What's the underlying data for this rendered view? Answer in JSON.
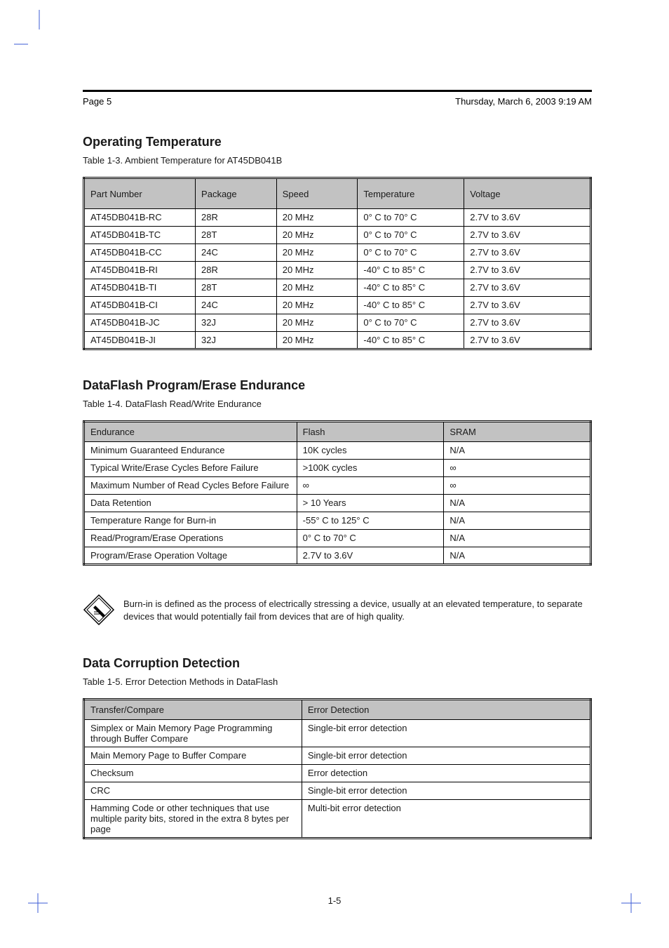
{
  "header": {
    "page_label": "Page 5",
    "timestamp": "Thursday, March 6, 2003  9:19 AM"
  },
  "section_ambient": {
    "title": "Operating Temperature",
    "subtitle": "Table 1-3. Ambient Temperature for AT45DB041B",
    "columns": [
      "Part Number",
      "Package",
      "Speed",
      "Temperature",
      "Voltage"
    ],
    "rows": [
      [
        "AT45DB041B-RC",
        "28R",
        "20 MHz",
        "0° C to 70° C",
        "2.7V to 3.6V"
      ],
      [
        "AT45DB041B-TC",
        "28T",
        "20 MHz",
        "0° C to 70° C",
        "2.7V to 3.6V"
      ],
      [
        "AT45DB041B-CC",
        "24C",
        "20 MHz",
        "0° C to 70° C",
        "2.7V to 3.6V"
      ],
      [
        "AT45DB041B-RI",
        "28R",
        "20 MHz",
        "-40° C to 85° C",
        "2.7V to 3.6V"
      ],
      [
        "AT45DB041B-TI",
        "28T",
        "20 MHz",
        "-40° C to 85° C",
        "2.7V to 3.6V"
      ],
      [
        "AT45DB041B-CI",
        "24C",
        "20 MHz",
        "-40° C to 85° C",
        "2.7V to 3.6V"
      ],
      [
        "AT45DB041B-JC",
        "32J",
        "20 MHz",
        "0° C to 70° C",
        "2.7V to 3.6V"
      ],
      [
        "AT45DB041B-JI",
        "32J",
        "20 MHz",
        "-40° C to 85° C",
        "2.7V to 3.6V"
      ]
    ],
    "col_widths": [
      "22%",
      "16%",
      "16%",
      "21%",
      "25%"
    ]
  },
  "section_program": {
    "title": "DataFlash Program/Erase Endurance",
    "subtitle": "Table 1-4. DataFlash Read/Write Endurance",
    "columns": [
      "Endurance",
      "Flash",
      "SRAM"
    ],
    "rows": [
      [
        "Minimum Guaranteed Endurance",
        "10K cycles",
        "N/A"
      ],
      [
        "Typical Write/Erase Cycles Before Failure",
        ">100K cycles",
        "∞"
      ],
      [
        "Maximum Number of Read Cycles Before Failure",
        "∞",
        "∞"
      ],
      [
        "Data Retention",
        "> 10 Years",
        "N/A"
      ],
      [
        "Temperature Range for Burn-in",
        "-55° C to 125° C",
        "N/A"
      ],
      [
        "Read/Program/Erase Operations",
        "0° C to 70° C",
        "N/A"
      ],
      [
        "Program/Erase Operation Voltage",
        "2.7V to 3.6V",
        "N/A"
      ]
    ],
    "col_widths": [
      "42%",
      "29%",
      "29%"
    ]
  },
  "note": {
    "text": "Burn-in is defined as the process of electrically stressing a device, usually at an elevated temperature, to separate devices that would potentially fail from devices that are of high quality."
  },
  "section_detection": {
    "title": "Data Corruption Detection",
    "subtitle": "Table 1-5. Error Detection Methods in DataFlash",
    "columns": [
      "Transfer/Compare",
      "Error Detection"
    ],
    "rows": [
      [
        "Simplex or Main Memory Page Programming through Buffer Compare",
        "Single-bit error detection"
      ],
      [
        "Main Memory Page to Buffer Compare",
        "Single-bit error detection"
      ],
      [
        "Checksum",
        "Error detection"
      ],
      [
        "CRC",
        "Single-bit error detection"
      ],
      [
        "Hamming Code or other techniques that use multiple parity bits, stored in the extra 8 bytes per page",
        "Multi-bit error detection"
      ]
    ],
    "col_widths": [
      "43%",
      "57%"
    ]
  },
  "footer": {
    "page_number": "1-5"
  },
  "style": {
    "header_bg": "#c2c2c2",
    "border_color": "#000000",
    "text_color": "#1a1a1a",
    "mark_color": "#3b5bd6"
  }
}
